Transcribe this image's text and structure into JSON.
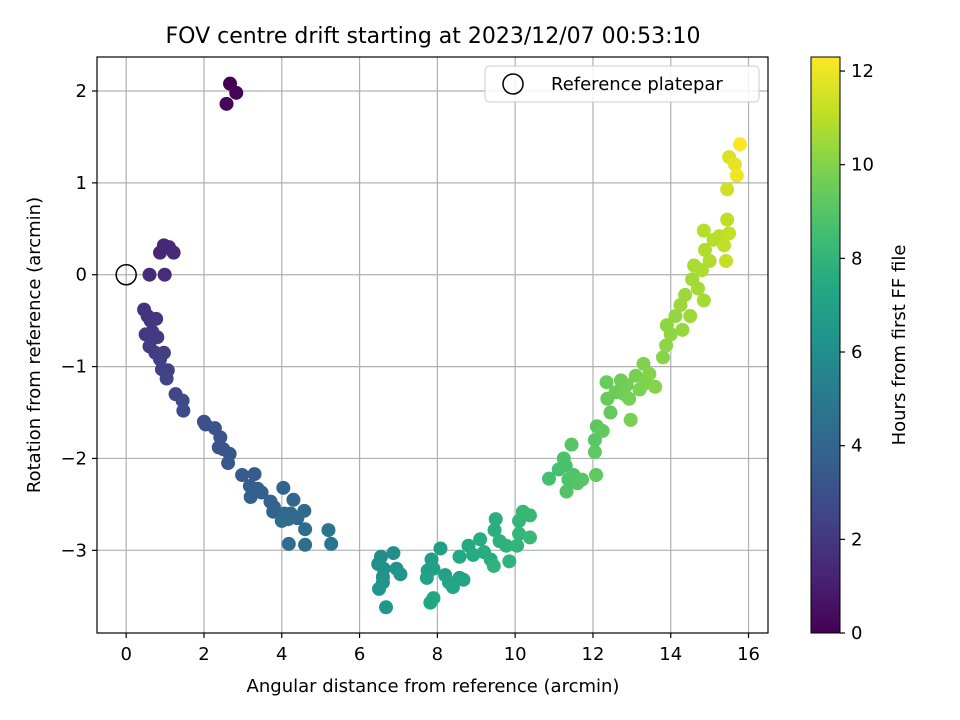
{
  "chart_data": {
    "type": "scatter",
    "title": "FOV centre drift starting at 2023/12/07 00:53:10",
    "xlabel": "Angular distance from reference (arcmin)",
    "ylabel": "Rotation from reference (arcmin)",
    "colorbar_label": "Hours from first FF file",
    "colormap": "viridis",
    "xlim": [
      -0.75,
      16.5
    ],
    "ylim": [
      -3.9,
      2.37
    ],
    "xticks": [
      0,
      2,
      4,
      6,
      8,
      10,
      12,
      14,
      16
    ],
    "yticks": [
      2,
      1,
      0,
      -1,
      -2,
      -3
    ],
    "ytick_labels": [
      "2",
      "1",
      "0",
      "−1",
      "−2",
      "−3"
    ],
    "colorbar_range": [
      0,
      12.3
    ],
    "colorbar_ticks": [
      0,
      2,
      4,
      6,
      8,
      10,
      12
    ],
    "grid": true,
    "legend_position": "top-right",
    "legend": [
      {
        "label": "Reference platepar",
        "marker": "open-circle"
      }
    ],
    "reference_point": {
      "x": 0,
      "y": 0
    },
    "points": [
      {
        "x": 2.67,
        "y": 2.08,
        "c": 0.0
      },
      {
        "x": 2.83,
        "y": 1.98,
        "c": 0.1
      },
      {
        "x": 2.58,
        "y": 1.86,
        "c": 0.2
      },
      {
        "x": 0.97,
        "y": 0.32,
        "c": 1.3
      },
      {
        "x": 1.1,
        "y": 0.3,
        "c": 1.35
      },
      {
        "x": 0.87,
        "y": 0.24,
        "c": 1.4
      },
      {
        "x": 1.22,
        "y": 0.24,
        "c": 1.45
      },
      {
        "x": 0.6,
        "y": 0.0,
        "c": 1.5
      },
      {
        "x": 0.99,
        "y": 0.0,
        "c": 1.55
      },
      {
        "x": 0.46,
        "y": -0.38,
        "c": 1.8
      },
      {
        "x": 0.55,
        "y": -0.45,
        "c": 1.85
      },
      {
        "x": 0.63,
        "y": -0.5,
        "c": 1.9
      },
      {
        "x": 0.77,
        "y": -0.48,
        "c": 1.95
      },
      {
        "x": 0.5,
        "y": -0.65,
        "c": 2.0
      },
      {
        "x": 0.67,
        "y": -0.62,
        "c": 2.05
      },
      {
        "x": 0.8,
        "y": -0.68,
        "c": 2.1
      },
      {
        "x": 0.6,
        "y": -0.78,
        "c": 2.15
      },
      {
        "x": 0.75,
        "y": -0.85,
        "c": 2.2
      },
      {
        "x": 0.97,
        "y": -0.85,
        "c": 2.25
      },
      {
        "x": 0.87,
        "y": -0.92,
        "c": 2.3
      },
      {
        "x": 0.92,
        "y": -1.03,
        "c": 2.35
      },
      {
        "x": 1.07,
        "y": -1.04,
        "c": 2.4
      },
      {
        "x": 1.04,
        "y": -1.13,
        "c": 2.45
      },
      {
        "x": 1.27,
        "y": -1.3,
        "c": 2.6
      },
      {
        "x": 1.45,
        "y": -1.37,
        "c": 2.7
      },
      {
        "x": 1.47,
        "y": -1.48,
        "c": 2.8
      },
      {
        "x": 2.0,
        "y": -1.6,
        "c": 3.0
      },
      {
        "x": 2.04,
        "y": -1.63,
        "c": 3.05
      },
      {
        "x": 2.28,
        "y": -1.67,
        "c": 3.1
      },
      {
        "x": 2.42,
        "y": -1.77,
        "c": 3.15
      },
      {
        "x": 2.38,
        "y": -1.88,
        "c": 3.2
      },
      {
        "x": 2.5,
        "y": -1.9,
        "c": 3.25
      },
      {
        "x": 2.66,
        "y": -1.95,
        "c": 3.3
      },
      {
        "x": 2.62,
        "y": -2.05,
        "c": 3.35
      },
      {
        "x": 2.98,
        "y": -2.18,
        "c": 3.5
      },
      {
        "x": 3.3,
        "y": -2.17,
        "c": 3.55
      },
      {
        "x": 3.18,
        "y": -2.3,
        "c": 3.6
      },
      {
        "x": 3.38,
        "y": -2.33,
        "c": 3.65
      },
      {
        "x": 3.48,
        "y": -2.37,
        "c": 3.7
      },
      {
        "x": 3.2,
        "y": -2.42,
        "c": 3.75
      },
      {
        "x": 3.71,
        "y": -2.47,
        "c": 3.8
      },
      {
        "x": 3.8,
        "y": -2.53,
        "c": 3.85
      },
      {
        "x": 3.78,
        "y": -2.58,
        "c": 3.9
      },
      {
        "x": 4.04,
        "y": -2.32,
        "c": 4.0
      },
      {
        "x": 4.3,
        "y": -2.45,
        "c": 4.05
      },
      {
        "x": 4.07,
        "y": -2.6,
        "c": 4.1
      },
      {
        "x": 4.23,
        "y": -2.6,
        "c": 4.15
      },
      {
        "x": 4.4,
        "y": -2.65,
        "c": 4.2
      },
      {
        "x": 4.58,
        "y": -2.57,
        "c": 4.25
      },
      {
        "x": 4.0,
        "y": -2.68,
        "c": 4.3
      },
      {
        "x": 4.17,
        "y": -2.66,
        "c": 4.35
      },
      {
        "x": 4.6,
        "y": -2.77,
        "c": 4.4
      },
      {
        "x": 4.18,
        "y": -2.93,
        "c": 4.45
      },
      {
        "x": 4.6,
        "y": -2.94,
        "c": 4.5
      },
      {
        "x": 5.2,
        "y": -2.78,
        "c": 4.7
      },
      {
        "x": 5.27,
        "y": -2.93,
        "c": 4.75
      },
      {
        "x": 6.55,
        "y": -3.07,
        "c": 6.0
      },
      {
        "x": 6.87,
        "y": -3.03,
        "c": 6.05
      },
      {
        "x": 6.48,
        "y": -3.15,
        "c": 6.1
      },
      {
        "x": 6.62,
        "y": -3.2,
        "c": 6.15
      },
      {
        "x": 6.6,
        "y": -3.29,
        "c": 6.2
      },
      {
        "x": 6.95,
        "y": -3.2,
        "c": 6.25
      },
      {
        "x": 7.05,
        "y": -3.26,
        "c": 6.3
      },
      {
        "x": 6.6,
        "y": -3.35,
        "c": 6.35
      },
      {
        "x": 6.5,
        "y": -3.42,
        "c": 6.4
      },
      {
        "x": 6.68,
        "y": -3.62,
        "c": 6.45
      },
      {
        "x": 7.85,
        "y": -3.1,
        "c": 6.8
      },
      {
        "x": 8.08,
        "y": -2.98,
        "c": 6.85
      },
      {
        "x": 7.75,
        "y": -3.22,
        "c": 6.9
      },
      {
        "x": 7.9,
        "y": -3.2,
        "c": 6.95
      },
      {
        "x": 8.2,
        "y": -3.27,
        "c": 7.0
      },
      {
        "x": 7.73,
        "y": -3.3,
        "c": 7.05
      },
      {
        "x": 8.3,
        "y": -3.35,
        "c": 7.1
      },
      {
        "x": 8.57,
        "y": -3.3,
        "c": 7.15
      },
      {
        "x": 8.67,
        "y": -3.32,
        "c": 7.2
      },
      {
        "x": 8.4,
        "y": -3.4,
        "c": 7.25
      },
      {
        "x": 7.9,
        "y": -3.52,
        "c": 7.3
      },
      {
        "x": 7.82,
        "y": -3.57,
        "c": 7.35
      },
      {
        "x": 8.57,
        "y": -3.07,
        "c": 7.4
      },
      {
        "x": 8.8,
        "y": -2.95,
        "c": 7.45
      },
      {
        "x": 8.92,
        "y": -3.05,
        "c": 7.5
      },
      {
        "x": 9.1,
        "y": -2.88,
        "c": 7.55
      },
      {
        "x": 9.2,
        "y": -3.02,
        "c": 7.6
      },
      {
        "x": 9.37,
        "y": -3.1,
        "c": 7.65
      },
      {
        "x": 9.5,
        "y": -2.66,
        "c": 7.7
      },
      {
        "x": 9.47,
        "y": -2.78,
        "c": 7.75
      },
      {
        "x": 9.6,
        "y": -2.9,
        "c": 7.8
      },
      {
        "x": 9.77,
        "y": -2.95,
        "c": 7.85
      },
      {
        "x": 9.45,
        "y": -3.17,
        "c": 7.9
      },
      {
        "x": 9.85,
        "y": -3.12,
        "c": 7.95
      },
      {
        "x": 10.05,
        "y": -2.95,
        "c": 8.0
      },
      {
        "x": 10.1,
        "y": -2.82,
        "c": 8.05
      },
      {
        "x": 10.1,
        "y": -2.68,
        "c": 8.1
      },
      {
        "x": 10.2,
        "y": -2.58,
        "c": 8.15
      },
      {
        "x": 10.38,
        "y": -2.62,
        "c": 8.2
      },
      {
        "x": 10.38,
        "y": -2.86,
        "c": 8.25
      },
      {
        "x": 10.87,
        "y": -2.22,
        "c": 8.6
      },
      {
        "x": 11.12,
        "y": -2.12,
        "c": 8.65
      },
      {
        "x": 11.3,
        "y": -2.08,
        "c": 8.7
      },
      {
        "x": 11.25,
        "y": -2.0,
        "c": 8.75
      },
      {
        "x": 11.37,
        "y": -2.23,
        "c": 8.8
      },
      {
        "x": 11.5,
        "y": -2.18,
        "c": 8.85
      },
      {
        "x": 11.32,
        "y": -2.36,
        "c": 8.9
      },
      {
        "x": 11.6,
        "y": -2.27,
        "c": 8.95
      },
      {
        "x": 11.72,
        "y": -2.23,
        "c": 9.0
      },
      {
        "x": 11.45,
        "y": -1.85,
        "c": 9.05
      },
      {
        "x": 12.05,
        "y": -1.8,
        "c": 9.1
      },
      {
        "x": 12.1,
        "y": -1.65,
        "c": 9.15
      },
      {
        "x": 12.05,
        "y": -1.93,
        "c": 9.2
      },
      {
        "x": 12.08,
        "y": -2.18,
        "c": 9.25
      },
      {
        "x": 12.25,
        "y": -1.7,
        "c": 9.3
      },
      {
        "x": 12.45,
        "y": -1.5,
        "c": 9.35
      },
      {
        "x": 12.37,
        "y": -1.35,
        "c": 9.4
      },
      {
        "x": 12.35,
        "y": -1.17,
        "c": 9.45
      },
      {
        "x": 12.58,
        "y": -1.28,
        "c": 9.5
      },
      {
        "x": 12.72,
        "y": -1.15,
        "c": 9.55
      },
      {
        "x": 12.8,
        "y": -1.3,
        "c": 9.6
      },
      {
        "x": 12.87,
        "y": -1.2,
        "c": 9.65
      },
      {
        "x": 12.93,
        "y": -1.35,
        "c": 9.7
      },
      {
        "x": 12.97,
        "y": -1.58,
        "c": 9.75
      },
      {
        "x": 13.1,
        "y": -1.1,
        "c": 9.8
      },
      {
        "x": 13.2,
        "y": -1.25,
        "c": 9.85
      },
      {
        "x": 13.35,
        "y": -1.18,
        "c": 9.9
      },
      {
        "x": 13.3,
        "y": -0.97,
        "c": 9.95
      },
      {
        "x": 13.45,
        "y": -1.08,
        "c": 10.0
      },
      {
        "x": 13.6,
        "y": -1.22,
        "c": 10.05
      },
      {
        "x": 13.8,
        "y": -0.9,
        "c": 10.1
      },
      {
        "x": 13.88,
        "y": -0.77,
        "c": 10.15
      },
      {
        "x": 13.9,
        "y": -0.55,
        "c": 10.2
      },
      {
        "x": 14.0,
        "y": -0.65,
        "c": 10.25
      },
      {
        "x": 14.12,
        "y": -0.45,
        "c": 10.3
      },
      {
        "x": 14.3,
        "y": -0.6,
        "c": 10.35
      },
      {
        "x": 14.25,
        "y": -0.33,
        "c": 10.4
      },
      {
        "x": 14.37,
        "y": -0.22,
        "c": 10.45
      },
      {
        "x": 14.5,
        "y": -0.45,
        "c": 10.5
      },
      {
        "x": 14.55,
        "y": -0.05,
        "c": 10.55
      },
      {
        "x": 14.7,
        "y": -0.15,
        "c": 10.6
      },
      {
        "x": 14.85,
        "y": -0.28,
        "c": 10.65
      },
      {
        "x": 14.6,
        "y": 0.1,
        "c": 10.7
      },
      {
        "x": 14.8,
        "y": 0.05,
        "c": 10.75
      },
      {
        "x": 14.88,
        "y": 0.27,
        "c": 10.8
      },
      {
        "x": 15.0,
        "y": 0.15,
        "c": 10.85
      },
      {
        "x": 14.85,
        "y": 0.48,
        "c": 10.9
      },
      {
        "x": 15.1,
        "y": 0.38,
        "c": 10.95
      },
      {
        "x": 15.25,
        "y": 0.42,
        "c": 11.0
      },
      {
        "x": 15.37,
        "y": 0.32,
        "c": 11.05
      },
      {
        "x": 15.45,
        "y": 0.6,
        "c": 11.1
      },
      {
        "x": 15.5,
        "y": 0.45,
        "c": 11.15
      },
      {
        "x": 15.42,
        "y": 0.15,
        "c": 11.2
      },
      {
        "x": 15.45,
        "y": 0.93,
        "c": 11.4
      },
      {
        "x": 15.5,
        "y": 1.28,
        "c": 11.6
      },
      {
        "x": 15.65,
        "y": 1.2,
        "c": 11.8
      },
      {
        "x": 15.7,
        "y": 1.08,
        "c": 12.0
      },
      {
        "x": 15.78,
        "y": 1.42,
        "c": 12.3
      }
    ]
  }
}
